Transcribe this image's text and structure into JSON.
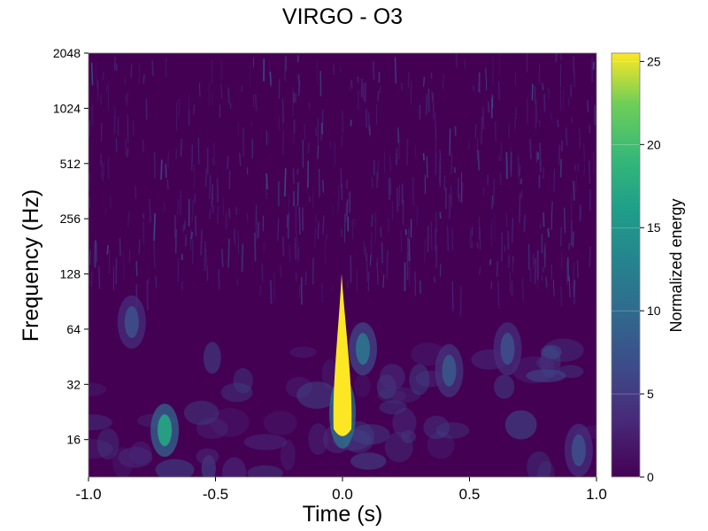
{
  "chart_data": {
    "type": "heatmap",
    "title": "VIRGO - O3",
    "xlabel": "Time (s)",
    "ylabel": "Frequency (Hz)",
    "xlim": [
      -1.0,
      1.0
    ],
    "ylim": [
      10,
      2048
    ],
    "yscale": "log2",
    "x_ticks": [
      -1.0,
      -0.5,
      0.0,
      0.5,
      1.0
    ],
    "x_tick_labels": [
      "-1.0",
      "-0.5",
      "0.0",
      "0.5",
      "1.0"
    ],
    "y_ticks": [
      16,
      32,
      64,
      128,
      256,
      512,
      1024,
      2048
    ],
    "y_tick_labels": [
      "16",
      "32",
      "64",
      "128",
      "256",
      "512",
      "1024",
      "2048"
    ],
    "colorbar": {
      "label": "Normalized energy",
      "range": [
        0,
        25.5
      ],
      "ticks": [
        0,
        5,
        10,
        15,
        20,
        25
      ],
      "tick_labels": [
        "0",
        "5",
        "10",
        "15",
        "20",
        "25"
      ],
      "colormap": "viridis"
    },
    "features": [
      {
        "time": 0.0,
        "freq_low": 16,
        "freq_high": 128,
        "energy": 25.5
      },
      {
        "time": -0.7,
        "freq": 18,
        "energy": 17
      },
      {
        "time": 0.08,
        "freq": 50,
        "energy": 11
      },
      {
        "time": -0.83,
        "freq": 70,
        "energy": 7
      },
      {
        "time": 0.42,
        "freq": 38,
        "energy": 8
      },
      {
        "time": 0.65,
        "freq": 50,
        "energy": 7
      },
      {
        "time": 0.93,
        "freq": 14,
        "energy": 7
      }
    ],
    "grid": false
  }
}
